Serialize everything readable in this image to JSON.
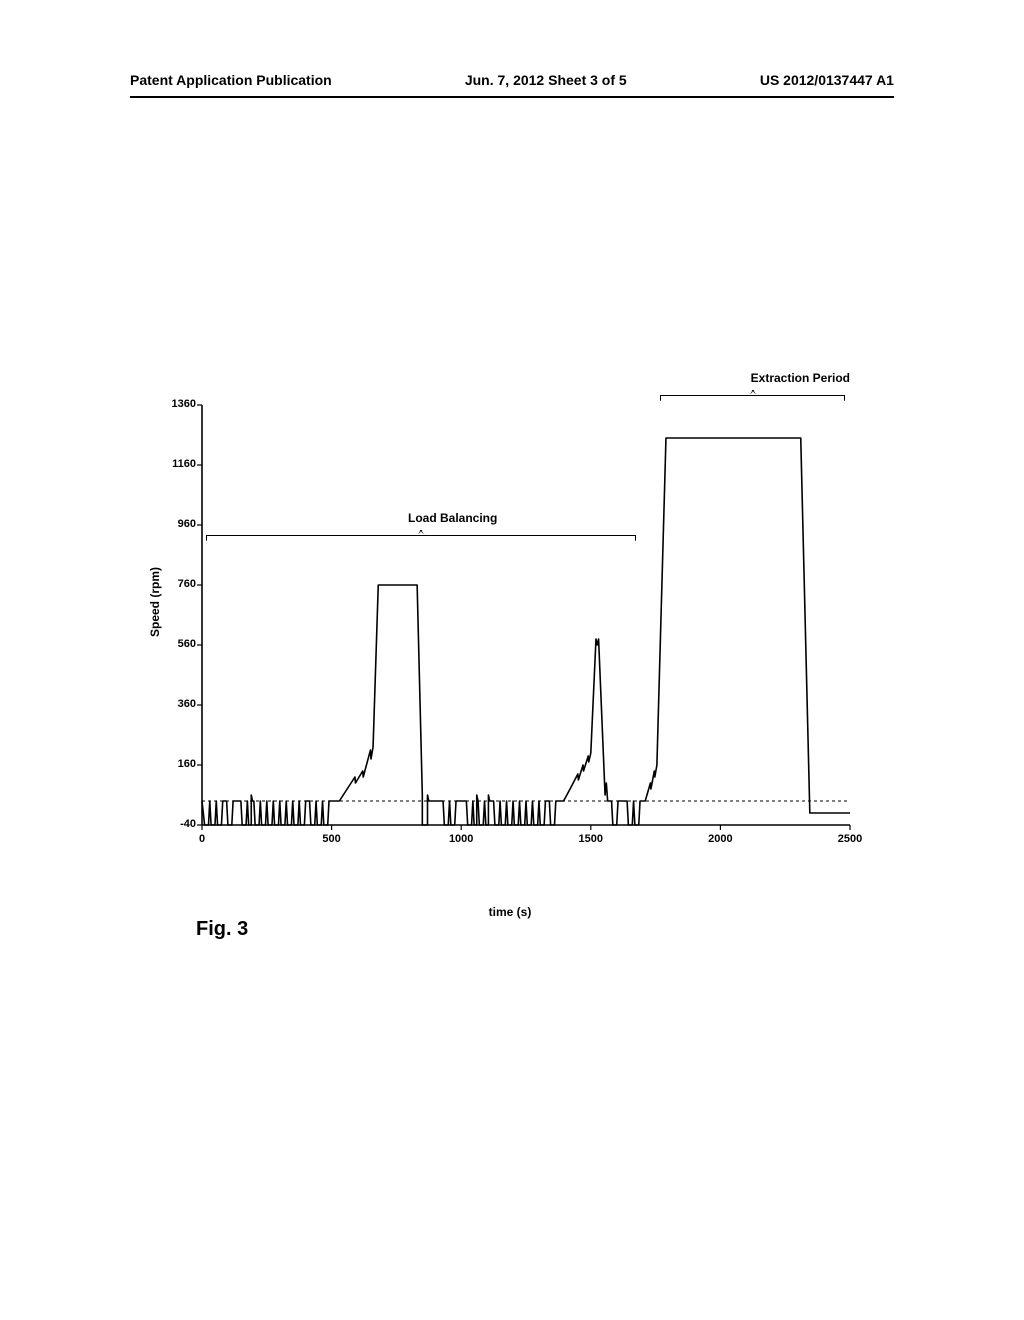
{
  "header": {
    "left": "Patent Application Publication",
    "center": "Jun. 7, 2012  Sheet 3 of 5",
    "right": "US 2012/0137447 A1"
  },
  "figure": {
    "caption": "Fig. 3",
    "xlabel": "time (s)",
    "ylabel": "Speed (rpm)",
    "annotations": {
      "extraction": "Extraction Period",
      "load_balancing": "Load Balancing"
    },
    "colors": {
      "axis": "#000000",
      "line": "#000000",
      "dashed": "#000000",
      "background": "#ffffff",
      "text": "#000000"
    },
    "line_width": 1.6,
    "font_size_labels": 12,
    "font_size_ticks": 11,
    "xlim": [
      0,
      2500
    ],
    "ylim": [
      -40,
      1360
    ],
    "xtick_step": 500,
    "xticks": [
      0,
      500,
      1000,
      1500,
      2000,
      2500
    ],
    "yticks": [
      -40,
      160,
      360,
      560,
      760,
      960,
      1160,
      1360
    ],
    "reference_line_y": 40,
    "series": [
      {
        "x": 0,
        "y": 40
      },
      {
        "x": 10,
        "y": -40
      },
      {
        "x": 25,
        "y": -40
      },
      {
        "x": 30,
        "y": 40
      },
      {
        "x": 35,
        "y": -40
      },
      {
        "x": 50,
        "y": -40
      },
      {
        "x": 55,
        "y": 40
      },
      {
        "x": 60,
        "y": -40
      },
      {
        "x": 75,
        "y": -40
      },
      {
        "x": 80,
        "y": 40
      },
      {
        "x": 95,
        "y": 40
      },
      {
        "x": 100,
        "y": -40
      },
      {
        "x": 115,
        "y": -40
      },
      {
        "x": 120,
        "y": 40
      },
      {
        "x": 150,
        "y": 40
      },
      {
        "x": 155,
        "y": -40
      },
      {
        "x": 170,
        "y": -40
      },
      {
        "x": 175,
        "y": 40
      },
      {
        "x": 180,
        "y": -40
      },
      {
        "x": 190,
        "y": -40
      },
      {
        "x": 190,
        "y": 60
      },
      {
        "x": 195,
        "y": 40
      },
      {
        "x": 200,
        "y": 40
      },
      {
        "x": 205,
        "y": -40
      },
      {
        "x": 220,
        "y": -40
      },
      {
        "x": 225,
        "y": 40
      },
      {
        "x": 230,
        "y": -40
      },
      {
        "x": 245,
        "y": -40
      },
      {
        "x": 250,
        "y": 40
      },
      {
        "x": 255,
        "y": -40
      },
      {
        "x": 270,
        "y": -40
      },
      {
        "x": 275,
        "y": 40
      },
      {
        "x": 280,
        "y": -40
      },
      {
        "x": 295,
        "y": -40
      },
      {
        "x": 300,
        "y": 40
      },
      {
        "x": 305,
        "y": -40
      },
      {
        "x": 320,
        "y": -40
      },
      {
        "x": 325,
        "y": 40
      },
      {
        "x": 330,
        "y": -40
      },
      {
        "x": 345,
        "y": -40
      },
      {
        "x": 350,
        "y": 40
      },
      {
        "x": 355,
        "y": -40
      },
      {
        "x": 370,
        "y": -40
      },
      {
        "x": 375,
        "y": 40
      },
      {
        "x": 380,
        "y": -40
      },
      {
        "x": 395,
        "y": -40
      },
      {
        "x": 400,
        "y": 40
      },
      {
        "x": 415,
        "y": 40
      },
      {
        "x": 420,
        "y": -40
      },
      {
        "x": 435,
        "y": -40
      },
      {
        "x": 440,
        "y": 40
      },
      {
        "x": 445,
        "y": -40
      },
      {
        "x": 460,
        "y": -40
      },
      {
        "x": 465,
        "y": 40
      },
      {
        "x": 470,
        "y": -40
      },
      {
        "x": 485,
        "y": -40
      },
      {
        "x": 490,
        "y": 40
      },
      {
        "x": 530,
        "y": 40
      },
      {
        "x": 560,
        "y": 80
      },
      {
        "x": 590,
        "y": 120
      },
      {
        "x": 592,
        "y": 100
      },
      {
        "x": 620,
        "y": 140
      },
      {
        "x": 622,
        "y": 120
      },
      {
        "x": 650,
        "y": 210
      },
      {
        "x": 652,
        "y": 180
      },
      {
        "x": 660,
        "y": 220
      },
      {
        "x": 680,
        "y": 760
      },
      {
        "x": 830,
        "y": 760
      },
      {
        "x": 850,
        "y": 60
      },
      {
        "x": 850,
        "y": -40
      },
      {
        "x": 870,
        "y": -40
      },
      {
        "x": 870,
        "y": 60
      },
      {
        "x": 875,
        "y": 40
      },
      {
        "x": 930,
        "y": 40
      },
      {
        "x": 935,
        "y": -40
      },
      {
        "x": 950,
        "y": -40
      },
      {
        "x": 955,
        "y": 40
      },
      {
        "x": 960,
        "y": -40
      },
      {
        "x": 975,
        "y": -40
      },
      {
        "x": 980,
        "y": 40
      },
      {
        "x": 1020,
        "y": 40
      },
      {
        "x": 1025,
        "y": -40
      },
      {
        "x": 1040,
        "y": -40
      },
      {
        "x": 1045,
        "y": 40
      },
      {
        "x": 1050,
        "y": -40
      },
      {
        "x": 1060,
        "y": -40
      },
      {
        "x": 1060,
        "y": 60
      },
      {
        "x": 1065,
        "y": 40
      },
      {
        "x": 1070,
        "y": -40
      },
      {
        "x": 1085,
        "y": -40
      },
      {
        "x": 1090,
        "y": 40
      },
      {
        "x": 1095,
        "y": -40
      },
      {
        "x": 1105,
        "y": -40
      },
      {
        "x": 1105,
        "y": 60
      },
      {
        "x": 1110,
        "y": 40
      },
      {
        "x": 1125,
        "y": 40
      },
      {
        "x": 1130,
        "y": -40
      },
      {
        "x": 1145,
        "y": -40
      },
      {
        "x": 1150,
        "y": 40
      },
      {
        "x": 1155,
        "y": -40
      },
      {
        "x": 1170,
        "y": -40
      },
      {
        "x": 1175,
        "y": 40
      },
      {
        "x": 1180,
        "y": -40
      },
      {
        "x": 1195,
        "y": -40
      },
      {
        "x": 1200,
        "y": 40
      },
      {
        "x": 1205,
        "y": -40
      },
      {
        "x": 1220,
        "y": -40
      },
      {
        "x": 1225,
        "y": 40
      },
      {
        "x": 1230,
        "y": -40
      },
      {
        "x": 1245,
        "y": -40
      },
      {
        "x": 1250,
        "y": 40
      },
      {
        "x": 1255,
        "y": -40
      },
      {
        "x": 1270,
        "y": -40
      },
      {
        "x": 1275,
        "y": 40
      },
      {
        "x": 1280,
        "y": -40
      },
      {
        "x": 1295,
        "y": -40
      },
      {
        "x": 1300,
        "y": 40
      },
      {
        "x": 1305,
        "y": -40
      },
      {
        "x": 1320,
        "y": -40
      },
      {
        "x": 1325,
        "y": 40
      },
      {
        "x": 1340,
        "y": 40
      },
      {
        "x": 1345,
        "y": -40
      },
      {
        "x": 1360,
        "y": -40
      },
      {
        "x": 1365,
        "y": 40
      },
      {
        "x": 1395,
        "y": 40
      },
      {
        "x": 1420,
        "y": 80
      },
      {
        "x": 1450,
        "y": 130
      },
      {
        "x": 1452,
        "y": 110
      },
      {
        "x": 1470,
        "y": 160
      },
      {
        "x": 1472,
        "y": 140
      },
      {
        "x": 1490,
        "y": 190
      },
      {
        "x": 1492,
        "y": 170
      },
      {
        "x": 1500,
        "y": 200
      },
      {
        "x": 1520,
        "y": 580
      },
      {
        "x": 1525,
        "y": 560
      },
      {
        "x": 1530,
        "y": 580
      },
      {
        "x": 1555,
        "y": 60
      },
      {
        "x": 1560,
        "y": 100
      },
      {
        "x": 1565,
        "y": 40
      },
      {
        "x": 1580,
        "y": 40
      },
      {
        "x": 1585,
        "y": -40
      },
      {
        "x": 1600,
        "y": -40
      },
      {
        "x": 1605,
        "y": 40
      },
      {
        "x": 1640,
        "y": 40
      },
      {
        "x": 1645,
        "y": -40
      },
      {
        "x": 1660,
        "y": -40
      },
      {
        "x": 1665,
        "y": 40
      },
      {
        "x": 1670,
        "y": -40
      },
      {
        "x": 1685,
        "y": -40
      },
      {
        "x": 1690,
        "y": 40
      },
      {
        "x": 1710,
        "y": 40
      },
      {
        "x": 1730,
        "y": 100
      },
      {
        "x": 1732,
        "y": 80
      },
      {
        "x": 1745,
        "y": 140
      },
      {
        "x": 1747,
        "y": 120
      },
      {
        "x": 1755,
        "y": 160
      },
      {
        "x": 1790,
        "y": 1250
      },
      {
        "x": 2310,
        "y": 1250
      },
      {
        "x": 2345,
        "y": 0
      },
      {
        "x": 2500,
        "y": 0
      }
    ]
  }
}
